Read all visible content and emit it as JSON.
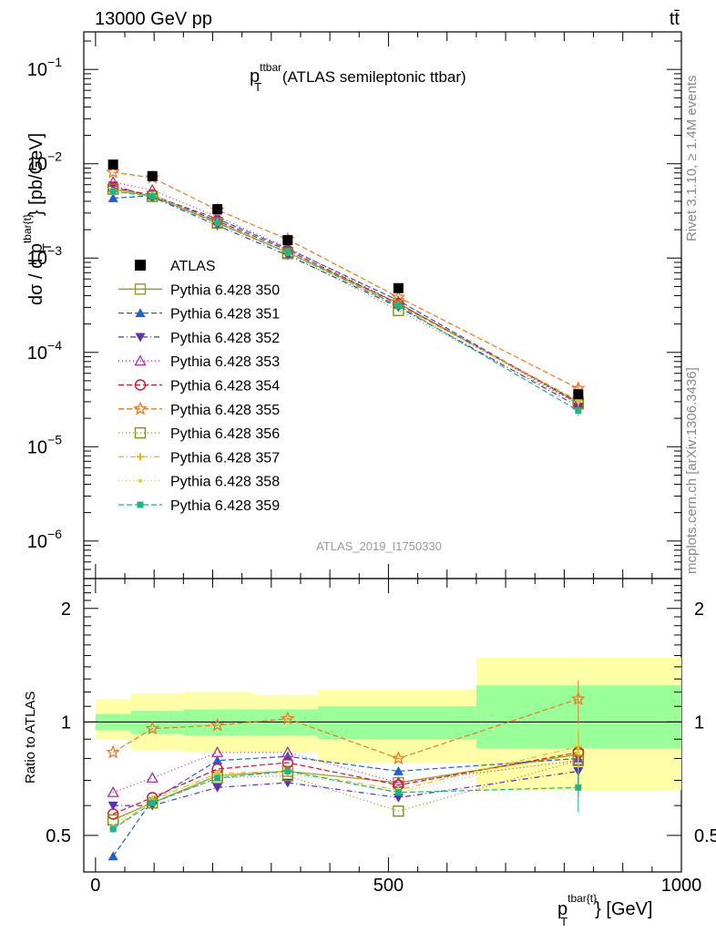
{
  "header": {
    "left": "13000 GeV pp",
    "right": "tt̄"
  },
  "chart_data": {
    "type": "scatter",
    "title_main": "p",
    "title_sup": "ttbar",
    "title_sub": "T",
    "title_rest": " (ATLAS semileptonic ttbar)",
    "ylabel_main": "dσ / d p",
    "ylabel_sup": "tbar{t}",
    "ylabel_sub": "T",
    "ylabel_unit": "} [pb/GeV]",
    "ratio_ylabel": "Ratio to ATLAS",
    "xlabel_main": "p",
    "xlabel_sup": "tbar{t}",
    "xlabel_sub": "T",
    "xlabel_unit": "} [GeV]",
    "analysis_id": "ATLAS_2019_I1750330",
    "side_label_top": "Rivet 3.1.10, ≥ 1.4M events",
    "side_label_bottom": "mcplots.cern.ch [arXiv:1306.3436]",
    "xlim": [
      -20,
      1000
    ],
    "ylim_main": [
      4e-07,
      0.25
    ],
    "ylim_ratio": [
      0.4,
      2.4
    ],
    "y_scale": "log",
    "x_ticks": [
      "0",
      "500",
      "1000"
    ],
    "y_ticks_main": [
      "10",
      "10",
      "10",
      "10",
      "10",
      "10"
    ],
    "y_ticks_main_exp": [
      "−1",
      "−2",
      "−3",
      "−4",
      "−5",
      "−6"
    ],
    "y_ticks_ratio": [
      "2",
      "1",
      "0.5"
    ],
    "legend_position": "left-middle",
    "bins": [
      [
        0,
        60
      ],
      [
        60,
        150
      ],
      [
        150,
        270
      ],
      [
        270,
        380
      ],
      [
        380,
        650
      ],
      [
        650,
        1000
      ]
    ],
    "x": [
      30,
      97,
      208,
      328,
      517,
      824
    ],
    "data": {
      "name": "ATLAS",
      "values": [
        0.0098,
        0.0074,
        0.0033,
        0.00155,
        0.00048,
        3.6e-05
      ],
      "band_inner": [
        [
          0.95,
          1.05
        ],
        [
          0.93,
          1.07
        ],
        [
          0.92,
          1.08
        ],
        [
          0.92,
          1.08
        ],
        [
          0.9,
          1.1
        ],
        [
          0.85,
          1.25
        ]
      ],
      "band_outer": [
        [
          0.9,
          1.15
        ],
        [
          0.84,
          1.19
        ],
        [
          0.83,
          1.2
        ],
        [
          0.83,
          1.18
        ],
        [
          0.78,
          1.22
        ],
        [
          0.66,
          1.48
        ]
      ]
    },
    "series": [
      {
        "name": "Pythia 6.428 350",
        "color": "#9a9a20",
        "dash": "",
        "marker": "square-open",
        "ratio": [
          0.55,
          0.61,
          0.72,
          0.74,
          0.69,
          0.82
        ]
      },
      {
        "name": "Pythia 6.428 351",
        "color": "#1f5fd6",
        "dash": "6,3",
        "marker": "triangle-up",
        "ratio": [
          0.44,
          0.62,
          0.79,
          0.81,
          0.74,
          0.8
        ]
      },
      {
        "name": "Pythia 6.428 352",
        "color": "#5a30b8",
        "dash": "6,3,1,3",
        "marker": "triangle-down",
        "ratio": [
          0.6,
          0.6,
          0.67,
          0.69,
          0.63,
          0.74
        ]
      },
      {
        "name": "Pythia 6.428 353",
        "color": "#b02ca0",
        "dash": "1,3",
        "marker": "triangle-open",
        "ratio": [
          0.65,
          0.71,
          0.83,
          0.83,
          0.69,
          0.79
        ]
      },
      {
        "name": "Pythia 6.428 354",
        "color": "#e0102a",
        "dash": "6,3",
        "marker": "circle-open",
        "ratio": [
          0.57,
          0.63,
          0.75,
          0.78,
          0.68,
          0.83
        ]
      },
      {
        "name": "Pythia 6.428 355",
        "color": "#f07820",
        "dash": "6,3",
        "marker": "star-open",
        "ratio": [
          0.83,
          0.96,
          0.98,
          1.02,
          0.8,
          1.15
        ]
      },
      {
        "name": "Pythia 6.428 356",
        "color": "#849010",
        "dash": "1,3",
        "marker": "square-open",
        "ratio": [
          0.55,
          0.61,
          0.71,
          0.72,
          0.58,
          0.79
        ]
      },
      {
        "name": "Pythia 6.428 357",
        "color": "#e8b818",
        "dash": "6,3,1,3",
        "marker": "cross",
        "ratio": [
          0.52,
          0.62,
          0.73,
          0.74,
          0.66,
          0.86
        ]
      },
      {
        "name": "Pythia 6.428 358",
        "color": "#c8d830",
        "dash": "1,3",
        "marker": "dot",
        "ratio": [
          0.53,
          0.63,
          0.72,
          0.73,
          0.65,
          0.83
        ]
      },
      {
        "name": "Pythia 6.428 359",
        "color": "#18b888",
        "dash": "6,3",
        "marker": "square",
        "ratio": [
          0.52,
          0.61,
          0.71,
          0.74,
          0.65,
          0.67
        ]
      }
    ]
  }
}
